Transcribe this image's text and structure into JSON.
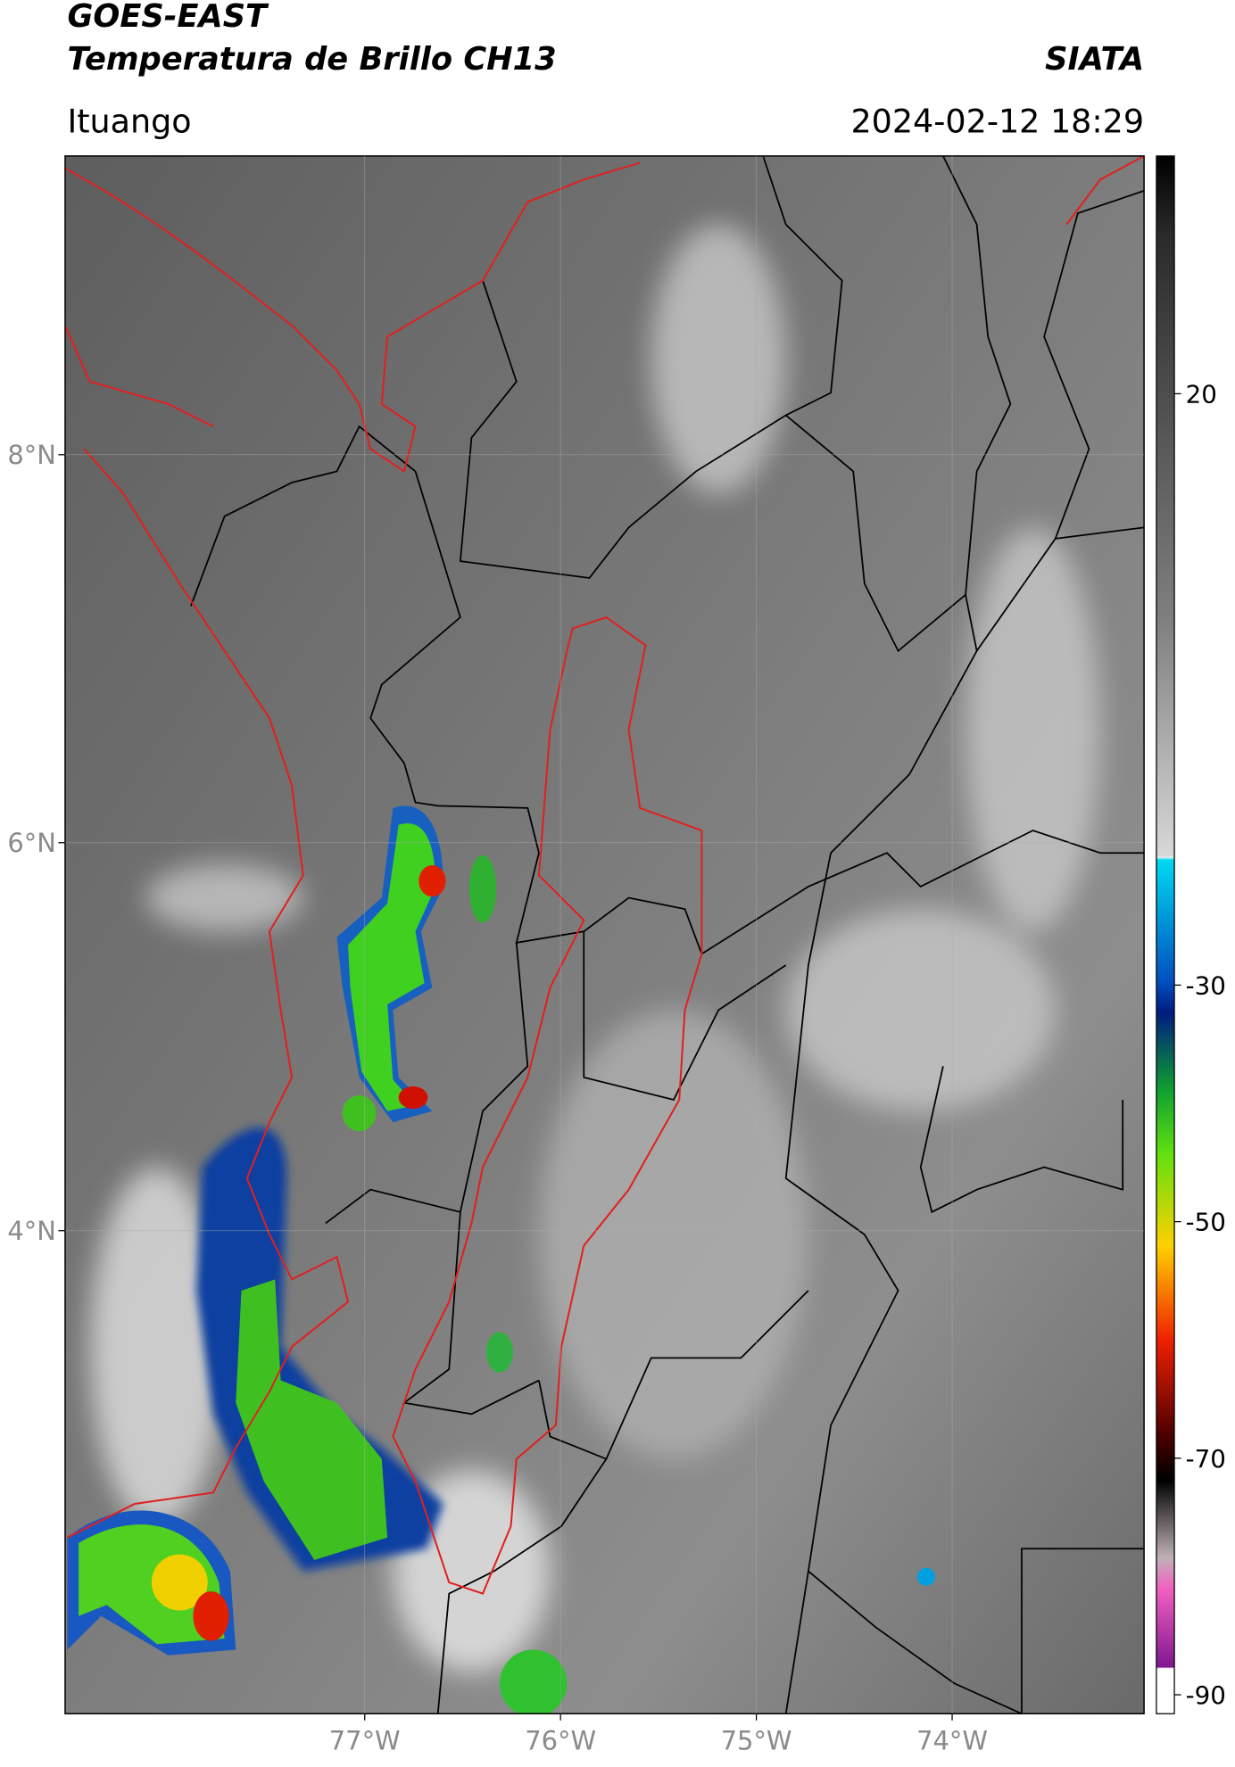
{
  "header": {
    "title": "GOES-EAST",
    "subtitle": "Temperatura de Brillo CH13",
    "brand": "SIATA",
    "region": "Ituango",
    "datetime": "2024-02-12 18:29"
  },
  "map": {
    "lat_range": [
      1.51,
      9.54
    ],
    "lon_range": [
      -78.53,
      -73.02
    ],
    "lat_ticks": [
      {
        "value": 8,
        "label": "8°N"
      },
      {
        "value": 6,
        "label": "6°N"
      },
      {
        "value": 4,
        "label": "4°N"
      }
    ],
    "lon_ticks": [
      {
        "value": -77,
        "label": "77°W"
      },
      {
        "value": -76,
        "label": "76°W"
      },
      {
        "value": -75,
        "label": "75°W"
      },
      {
        "value": -74,
        "label": "74°W"
      }
    ]
  },
  "colorbar": {
    "range": [
      -91.6,
      40.1
    ],
    "ticks": [
      20,
      -30,
      -50,
      -70,
      -90
    ]
  }
}
